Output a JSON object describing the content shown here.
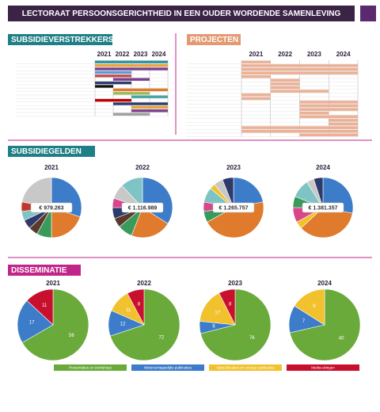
{
  "title": "LECTORAAT PERSOONSGERICHTHEID IN EEN OUDER WORDENDE SAMENLEVING",
  "subsidieverstrekkers": {
    "heading": "SUBSIDIEVERSTREKKERS",
    "years": [
      "2021",
      "2022",
      "2023",
      "2024"
    ],
    "xlim": [
      2021,
      2025
    ],
    "rows": [
      {
        "start": 2021,
        "end": 2025,
        "color": "#2f8f9d"
      },
      {
        "start": 2021,
        "end": 2025,
        "color": "#e5a33b"
      },
      {
        "start": 2021,
        "end": 2025,
        "color": "#7a3e8e"
      },
      {
        "start": 2021,
        "end": 2023,
        "color": "#5b9bd5"
      },
      {
        "start": 2021,
        "end": 2023,
        "color": "#c0504d"
      },
      {
        "start": 2022,
        "end": 2024,
        "color": "#7a3e8e"
      },
      {
        "start": 2021,
        "end": 2023,
        "color": "#2d3a6b"
      },
      {
        "start": 2021,
        "end": 2022,
        "color": "#111111"
      },
      {
        "start": 2022,
        "end": 2025,
        "color": "#e07a2d"
      },
      {
        "start": 2022,
        "end": 2024,
        "color": "#9bbb59"
      },
      {
        "start": 2023,
        "end": 2025,
        "color": "#4aa3a3"
      },
      {
        "start": 2021,
        "end": 2023,
        "color": "#c00000"
      },
      {
        "start": 2022,
        "end": 2025,
        "color": "#2d3a6b"
      },
      {
        "start": 2023,
        "end": 2025,
        "color": "#e5a33b"
      },
      {
        "start": 2023,
        "end": 2025,
        "color": "#7a3e8e"
      },
      {
        "start": 2022,
        "end": 2024,
        "color": "#a0a0a0"
      }
    ]
  },
  "projecten": {
    "heading": "PROJECTEN",
    "years": [
      "2021",
      "2022",
      "2023",
      "2024"
    ],
    "xlim": [
      2021,
      2025
    ],
    "color": "#eab197",
    "rows": [
      {
        "start": 2021,
        "end": 2022
      },
      {
        "start": 2021,
        "end": 2025
      },
      {
        "start": 2021,
        "end": 2025
      },
      {
        "start": 2021,
        "end": 2025
      },
      {
        "start": 2021,
        "end": 2022
      },
      {
        "start": 2022,
        "end": 2023
      },
      {
        "start": 2022,
        "end": 2023
      },
      {
        "start": 2022,
        "end": 2023
      },
      {
        "start": 2022,
        "end": 2024
      },
      {
        "start": 2021,
        "end": 2022
      },
      {
        "start": 2021,
        "end": 2022
      },
      {
        "start": 2023,
        "end": 2025
      },
      {
        "start": 2023,
        "end": 2025
      },
      {
        "start": 2023,
        "end": 2025
      },
      {
        "start": 2023,
        "end": 2024
      },
      {
        "start": 2023,
        "end": 2025
      },
      {
        "start": 2024,
        "end": 2025
      },
      {
        "start": 2024,
        "end": 2025
      },
      {
        "start": 2021,
        "end": 2025
      },
      {
        "start": 2021,
        "end": 2025
      },
      {
        "start": 2023,
        "end": 2025
      }
    ]
  },
  "subsidiegelden": {
    "heading": "SUBSIDIEGELDEN",
    "charts": [
      {
        "year": "2021",
        "total": "€ 979.263",
        "values": [
          30,
          20,
          8,
          5,
          5,
          5,
          5,
          22
        ],
        "colors": [
          "#3d7cc9",
          "#e07a2d",
          "#3a9a5b",
          "#5a3a2a",
          "#2d3a6b",
          "#7fc4c4",
          "#c0392b",
          "#c8c8c8"
        ]
      },
      {
        "year": "2022",
        "total": "€ 1.116.989",
        "values": [
          34,
          22,
          8,
          5,
          6,
          5,
          8,
          12
        ],
        "colors": [
          "#3d7cc9",
          "#e07a2d",
          "#3a9a5b",
          "#5a3a2a",
          "#2d3a6b",
          "#d9468c",
          "#c8c8c8",
          "#7fc4c4"
        ]
      },
      {
        "year": "2023",
        "total": "€ 1.265.757",
        "values": [
          22,
          45,
          6,
          5,
          8,
          3,
          5,
          6
        ],
        "colors": [
          "#3d7cc9",
          "#e07a2d",
          "#3a9a5b",
          "#d9468c",
          "#7fc4c4",
          "#f2c12e",
          "#c8c8c8",
          "#2d3a6b"
        ]
      },
      {
        "year": "2024",
        "total": "€ 1.381.357",
        "values": [
          28,
          35,
          4,
          8,
          6,
          10,
          4,
          5
        ],
        "colors": [
          "#3d7cc9",
          "#e07a2d",
          "#f2c12e",
          "#d9468c",
          "#3a9a5b",
          "#7fc4c4",
          "#c8c8c8",
          "#2d3a6b"
        ]
      }
    ]
  },
  "disseminatie": {
    "heading": "DISSEMINATIE",
    "categories": [
      "Presentaties en workshops",
      "Wetenschappelijke publicaties",
      "Vakpublicaties en overige publicaties",
      "Media-uitingen"
    ],
    "colors": [
      "#6aaa3a",
      "#3d7cc9",
      "#f2c12e",
      "#c8102e"
    ],
    "charts": [
      {
        "year": "2021",
        "values": [
          56,
          17,
          null,
          11
        ]
      },
      {
        "year": "2022",
        "values": [
          72,
          12,
          11,
          8
        ]
      },
      {
        "year": "2023",
        "values": [
          76,
          6,
          17,
          8
        ]
      },
      {
        "year": "2024",
        "values": [
          40,
          7,
          9,
          null
        ]
      }
    ]
  }
}
